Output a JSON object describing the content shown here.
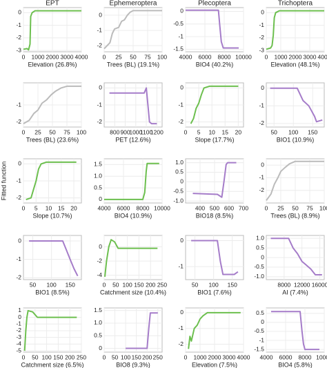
{
  "chart_data": [
    {
      "type": "line",
      "title": "EPT",
      "xlabel": "Elevation (26.8%)",
      "xlim": [
        0,
        4000
      ],
      "xticks": [
        0,
        1000,
        2000,
        3000,
        4000
      ],
      "ylim": [
        -3.1,
        0.4
      ],
      "yticks": [
        0,
        -1,
        -2,
        -3
      ],
      "grid": true,
      "color": "#6cbf4e",
      "x": [
        0,
        250,
        350,
        450,
        500,
        600,
        800,
        4000
      ],
      "values": [
        -2.9,
        -2.85,
        -2.95,
        -2.5,
        -0.3,
        0.0,
        0.15,
        0.15
      ]
    },
    {
      "type": "line",
      "title": "Ephemeroptera",
      "xlabel": "Trees (BL) (19.1%)",
      "xlim": [
        0,
        100
      ],
      "xticks": [
        0,
        25,
        50,
        75,
        100
      ],
      "ylim": [
        -2.4,
        0.5
      ],
      "yticks": [
        0,
        -1,
        -2
      ],
      "grid": true,
      "color": "#bbbbbb",
      "x": [
        0,
        5,
        10,
        14,
        18,
        25,
        30,
        35,
        40,
        45,
        50,
        100
      ],
      "values": [
        -2.2,
        -2.0,
        -1.8,
        -1.2,
        -0.9,
        -0.8,
        -0.4,
        -0.3,
        0.0,
        0.2,
        0.3,
        0.3
      ]
    },
    {
      "type": "line",
      "title": "Plecoptera",
      "xlabel": "BIO4 (40.2%)",
      "xlim": [
        4000,
        10000
      ],
      "xticks": [
        4000,
        6000,
        8000,
        10000
      ],
      "ylim": [
        -1.6,
        0.15
      ],
      "yticks": [
        0,
        -0.5,
        -1,
        -1.5
      ],
      "grid": true,
      "color": "#a57cc9",
      "x": [
        4000,
        7400,
        7550,
        7700,
        7900,
        9500
      ],
      "values": [
        0.05,
        0.05,
        -0.6,
        -1.2,
        -1.45,
        -1.45
      ]
    },
    {
      "type": "line",
      "title": "Trichoptera",
      "xlabel": "Elevation (48.1%)",
      "xlim": [
        0,
        4000
      ],
      "xticks": [
        0,
        1000,
        2000,
        3000,
        4000
      ],
      "ylim": [
        -3.1,
        0.4
      ],
      "yticks": [
        0,
        -1,
        -2,
        -3
      ],
      "grid": true,
      "color": "#6cbf4e",
      "x": [
        0,
        300,
        400,
        480,
        550,
        650,
        900,
        4000
      ],
      "values": [
        -2.9,
        -2.8,
        -2.6,
        -1.8,
        -0.4,
        0.0,
        0.15,
        0.15
      ]
    },
    {
      "type": "line",
      "xlabel": "Trees (BL) (23.6%)",
      "xlim": [
        0,
        100
      ],
      "xticks": [
        0,
        25,
        50,
        75,
        100
      ],
      "ylim": [
        -2.3,
        0.3
      ],
      "yticks": [
        -1,
        -2
      ],
      "grid": true,
      "color": "#bbbbbb",
      "x": [
        0,
        10,
        18,
        25,
        32,
        40,
        48,
        55,
        65,
        75,
        100
      ],
      "values": [
        -2.1,
        -1.9,
        -1.5,
        -1.3,
        -0.9,
        -0.7,
        -0.4,
        -0.2,
        0.0,
        0.1,
        0.1
      ]
    },
    {
      "type": "line",
      "xlabel": "PET (12.6%)",
      "xlim": [
        700,
        1250
      ],
      "xticks": [
        800,
        900,
        1000,
        1100,
        1200
      ],
      "ylim": [
        -2.3,
        0.3
      ],
      "yticks": [
        0,
        -1,
        -2
      ],
      "grid": true,
      "color": "#a57cc9",
      "x": [
        750,
        1080,
        1100,
        1115,
        1130,
        1150,
        1200
      ],
      "values": [
        -0.3,
        -0.3,
        0.0,
        -1.0,
        -2.0,
        -2.1,
        -2.1
      ]
    },
    {
      "type": "line",
      "xlabel": "Slope (17.7%)",
      "xlim": [
        0,
        22
      ],
      "xticks": [
        0,
        5,
        10,
        15,
        20
      ],
      "ylim": [
        -2.3,
        0.3
      ],
      "yticks": [
        0,
        -1,
        -2
      ],
      "grid": true,
      "color": "#6cbf4e",
      "x": [
        2,
        3,
        4,
        5,
        6,
        7,
        9,
        20
      ],
      "values": [
        -2.1,
        -1.8,
        -1.2,
        -0.9,
        -0.4,
        0.0,
        0.1,
        0.1
      ]
    },
    {
      "type": "line",
      "xlabel": "BIO1 (10.9%)",
      "xlim": [
        30,
        180
      ],
      "xticks": [
        50,
        100,
        150
      ],
      "ylim": [
        -2.2,
        0.3
      ],
      "yticks": [
        0,
        -1,
        -2
      ],
      "grid": true,
      "color": "#a57cc9",
      "x": [
        40,
        110,
        125,
        140,
        155,
        160,
        175
      ],
      "values": [
        0.0,
        0.0,
        -0.7,
        -1.0,
        -1.6,
        -1.9,
        -1.8
      ]
    },
    {
      "type": "line",
      "ylabel": "Fitted function",
      "xlabel": "Slope (10.7%)",
      "xlim": [
        0,
        23
      ],
      "xticks": [
        0,
        5,
        10,
        15,
        20
      ],
      "ylim": [
        -2.3,
        0.3
      ],
      "yticks": [
        0,
        -1,
        -2
      ],
      "grid": true,
      "color": "#6cbf4e",
      "x": [
        1,
        3,
        4,
        5,
        6,
        7,
        9,
        21
      ],
      "values": [
        -2.1,
        -2.0,
        -1.5,
        -1.0,
        -0.3,
        0.0,
        0.1,
        0.1
      ]
    },
    {
      "type": "line",
      "xlabel": "BIO4 (10.9%)",
      "xlim": [
        4000,
        10000
      ],
      "xticks": [
        4000,
        6000,
        8000,
        10000
      ],
      "ylim": [
        -0.15,
        1.75
      ],
      "yticks": [
        1.5,
        {
          "value": 1,
          "label": "1.0"
        },
        0.5,
        0
      ],
      "grid": true,
      "color": "#6cbf4e",
      "x": [
        4000,
        8000,
        8200,
        8350,
        8450,
        9700
      ],
      "values": [
        0.0,
        0.0,
        0.3,
        1.2,
        1.55,
        1.55
      ]
    },
    {
      "type": "line",
      "xlabel": "BIO18 (8.5%)",
      "xlim": [
        300,
        700
      ],
      "xticks": [
        400,
        500,
        600,
        700
      ],
      "ylim": [
        -1.1,
        1.2
      ],
      "yticks": [
        {
          "value": 1,
          "label": "1.0"
        },
        0.5,
        0,
        -0.5,
        {
          "value": -1,
          "label": "-1.0"
        }
      ],
      "grid": true,
      "color": "#a57cc9",
      "x": [
        350,
        520,
        550,
        565,
        580,
        590,
        650
      ],
      "values": [
        -0.6,
        -0.65,
        -0.8,
        0.0,
        0.9,
        1.0,
        1.0
      ]
    },
    {
      "type": "line",
      "xlabel": "Trees (BL) (8.9%)",
      "xlim": [
        0,
        100
      ],
      "xticks": [
        0,
        25,
        50,
        75,
        100
      ],
      "ylim": [
        -3.0,
        0.5
      ],
      "yticks": [
        0,
        -1,
        -2
      ],
      "grid": true,
      "color": "#bbbbbb",
      "x": [
        0,
        8,
        14,
        20,
        25,
        32,
        40,
        50,
        100
      ],
      "values": [
        -2.8,
        -2.3,
        -1.5,
        -1.0,
        -0.5,
        -0.2,
        0.1,
        0.3,
        0.3
      ]
    },
    {
      "type": "line",
      "xlabel": "BIO1 (8.5%)",
      "xlim": [
        25,
        180
      ],
      "xticks": [
        50,
        100,
        150
      ],
      "ylim": [
        -2.1,
        0.3
      ],
      "yticks": [
        0,
        -1,
        -2
      ],
      "grid": true,
      "color": "#a57cc9",
      "x": [
        40,
        130,
        140,
        150,
        160,
        170
      ],
      "values": [
        0.0,
        0.0,
        -0.5,
        -1.0,
        -1.5,
        -1.9
      ]
    },
    {
      "type": "line",
      "xlabel": "Catchment size (10.4%)",
      "xlim": [
        0,
        250
      ],
      "xticks": [
        0,
        50,
        100,
        150,
        200,
        250
      ],
      "ylim": [
        -4.6,
        1.6
      ],
      "yticks": [
        0,
        -2,
        -4
      ],
      "grid": true,
      "color": "#6cbf4e",
      "x": [
        3,
        10,
        20,
        30,
        45,
        60,
        230
      ],
      "values": [
        -4.2,
        -2.0,
        0.0,
        1.0,
        0.7,
        -0.2,
        -0.2
      ]
    },
    {
      "type": "line",
      "xlabel": "BIO1 (7.6%)",
      "xlim": [
        25,
        180
      ],
      "xticks": [
        50,
        100,
        150
      ],
      "ylim": [
        -1.5,
        0.2
      ],
      "yticks": [
        0,
        -1
      ],
      "grid": true,
      "color": "#a57cc9",
      "x": [
        40,
        110,
        118,
        125,
        155,
        165
      ],
      "values": [
        0.0,
        0.0,
        -0.8,
        -1.3,
        -1.3,
        -1.2
      ]
    },
    {
      "type": "line",
      "xlabel": "AI (7.4%)",
      "xlim": [
        4000,
        17000
      ],
      "xticks": [
        8000,
        12000,
        16000
      ],
      "ylim": [
        -1.15,
        1.15
      ],
      "yticks": [
        {
          "value": 1,
          "label": "1.0"
        },
        0.5,
        0,
        -0.5,
        {
          "value": -1,
          "label": "-1.0"
        }
      ],
      "grid": true,
      "color": "#a57cc9",
      "x": [
        5000,
        9000,
        10000,
        11000,
        12000,
        13000,
        14000,
        15000,
        16500
      ],
      "values": [
        1.0,
        1.0,
        0.5,
        0.2,
        -0.2,
        -0.4,
        -0.6,
        -0.9,
        -0.9
      ]
    },
    {
      "type": "line",
      "xlabel": "Catchment size (6.5%)",
      "xlim": [
        0,
        250
      ],
      "xticks": [
        0,
        50,
        100,
        150,
        200,
        250
      ],
      "ylim": [
        -5.2,
        1.4
      ],
      "yticks": [
        1,
        0,
        -1,
        -2,
        -3,
        -4,
        -5
      ],
      "grid": true,
      "color": "#6cbf4e",
      "x": [
        5,
        10,
        15,
        20,
        40,
        60,
        230
      ],
      "values": [
        -5.0,
        -2.0,
        0.0,
        1.0,
        0.8,
        0.0,
        0.0
      ]
    },
    {
      "type": "line",
      "xlabel": "BIO8 (9.3%)",
      "xlim": [
        0,
        270
      ],
      "xticks": [
        0,
        50,
        100,
        150,
        200,
        250
      ],
      "ylim": [
        -0.15,
        1.6
      ],
      "yticks": [
        1.5,
        {
          "value": 1,
          "label": "1.0"
        },
        0.5,
        0
      ],
      "grid": true,
      "color": "#a57cc9",
      "x": [
        100,
        200,
        208,
        215,
        250
      ],
      "values": [
        0.0,
        0.0,
        0.8,
        1.4,
        1.4
      ]
    },
    {
      "type": "line",
      "xlabel": "Elevation (7.5%)",
      "xlim": [
        0,
        4000
      ],
      "xticks": [
        0,
        1000,
        2000,
        3000,
        4000
      ],
      "ylim": [
        -2.5,
        0.3
      ],
      "yticks": [
        0,
        -1,
        -2
      ],
      "grid": true,
      "color": "#6cbf4e",
      "x": [
        200,
        300,
        400,
        600,
        800,
        1000,
        1200,
        1500,
        3800
      ],
      "values": [
        -2.3,
        -1.5,
        -1.8,
        -1.0,
        -0.8,
        -0.4,
        -0.2,
        0.0,
        0.0
      ]
    },
    {
      "type": "line",
      "xlabel": "BIO4 (5.8%)",
      "xlim": [
        4000,
        10000
      ],
      "xticks": [
        4000,
        6000,
        8000,
        10000
      ],
      "ylim": [
        -1.65,
        0.8
      ],
      "yticks": [
        0.5,
        0,
        -0.5,
        -1,
        -1.5
      ],
      "grid": true,
      "color": "#a57cc9",
      "x": [
        4500,
        7500,
        7700,
        7850,
        8000,
        9500
      ],
      "values": [
        0.6,
        0.6,
        -0.5,
        -1.2,
        -1.5,
        -1.5
      ]
    }
  ]
}
